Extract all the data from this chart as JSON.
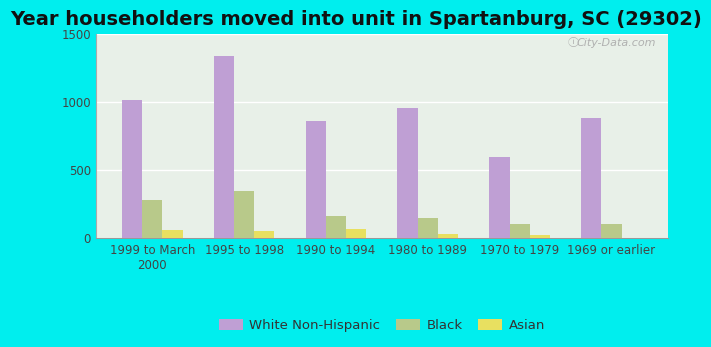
{
  "title": "Year householders moved into unit in Spartanburg, SC (29302)",
  "categories": [
    "1999 to March\n2000",
    "1995 to 1998",
    "1990 to 1994",
    "1980 to 1989",
    "1970 to 1979",
    "1969 or earlier"
  ],
  "white": [
    1010,
    1335,
    855,
    950,
    590,
    880
  ],
  "black": [
    275,
    345,
    160,
    140,
    100,
    100
  ],
  "asian": [
    55,
    50,
    60,
    25,
    20,
    0
  ],
  "white_color": "#bf9fd4",
  "black_color": "#b8c98a",
  "asian_color": "#e8e060",
  "background_outer": "#00EEEE",
  "background_inner_left": "#d0e8d0",
  "background_inner_right": "#e8f0e8",
  "ylim": [
    0,
    1500
  ],
  "yticks": [
    0,
    500,
    1000,
    1500
  ],
  "bar_width": 0.22,
  "title_fontsize": 14,
  "tick_fontsize": 8.5,
  "legend_fontsize": 9.5
}
